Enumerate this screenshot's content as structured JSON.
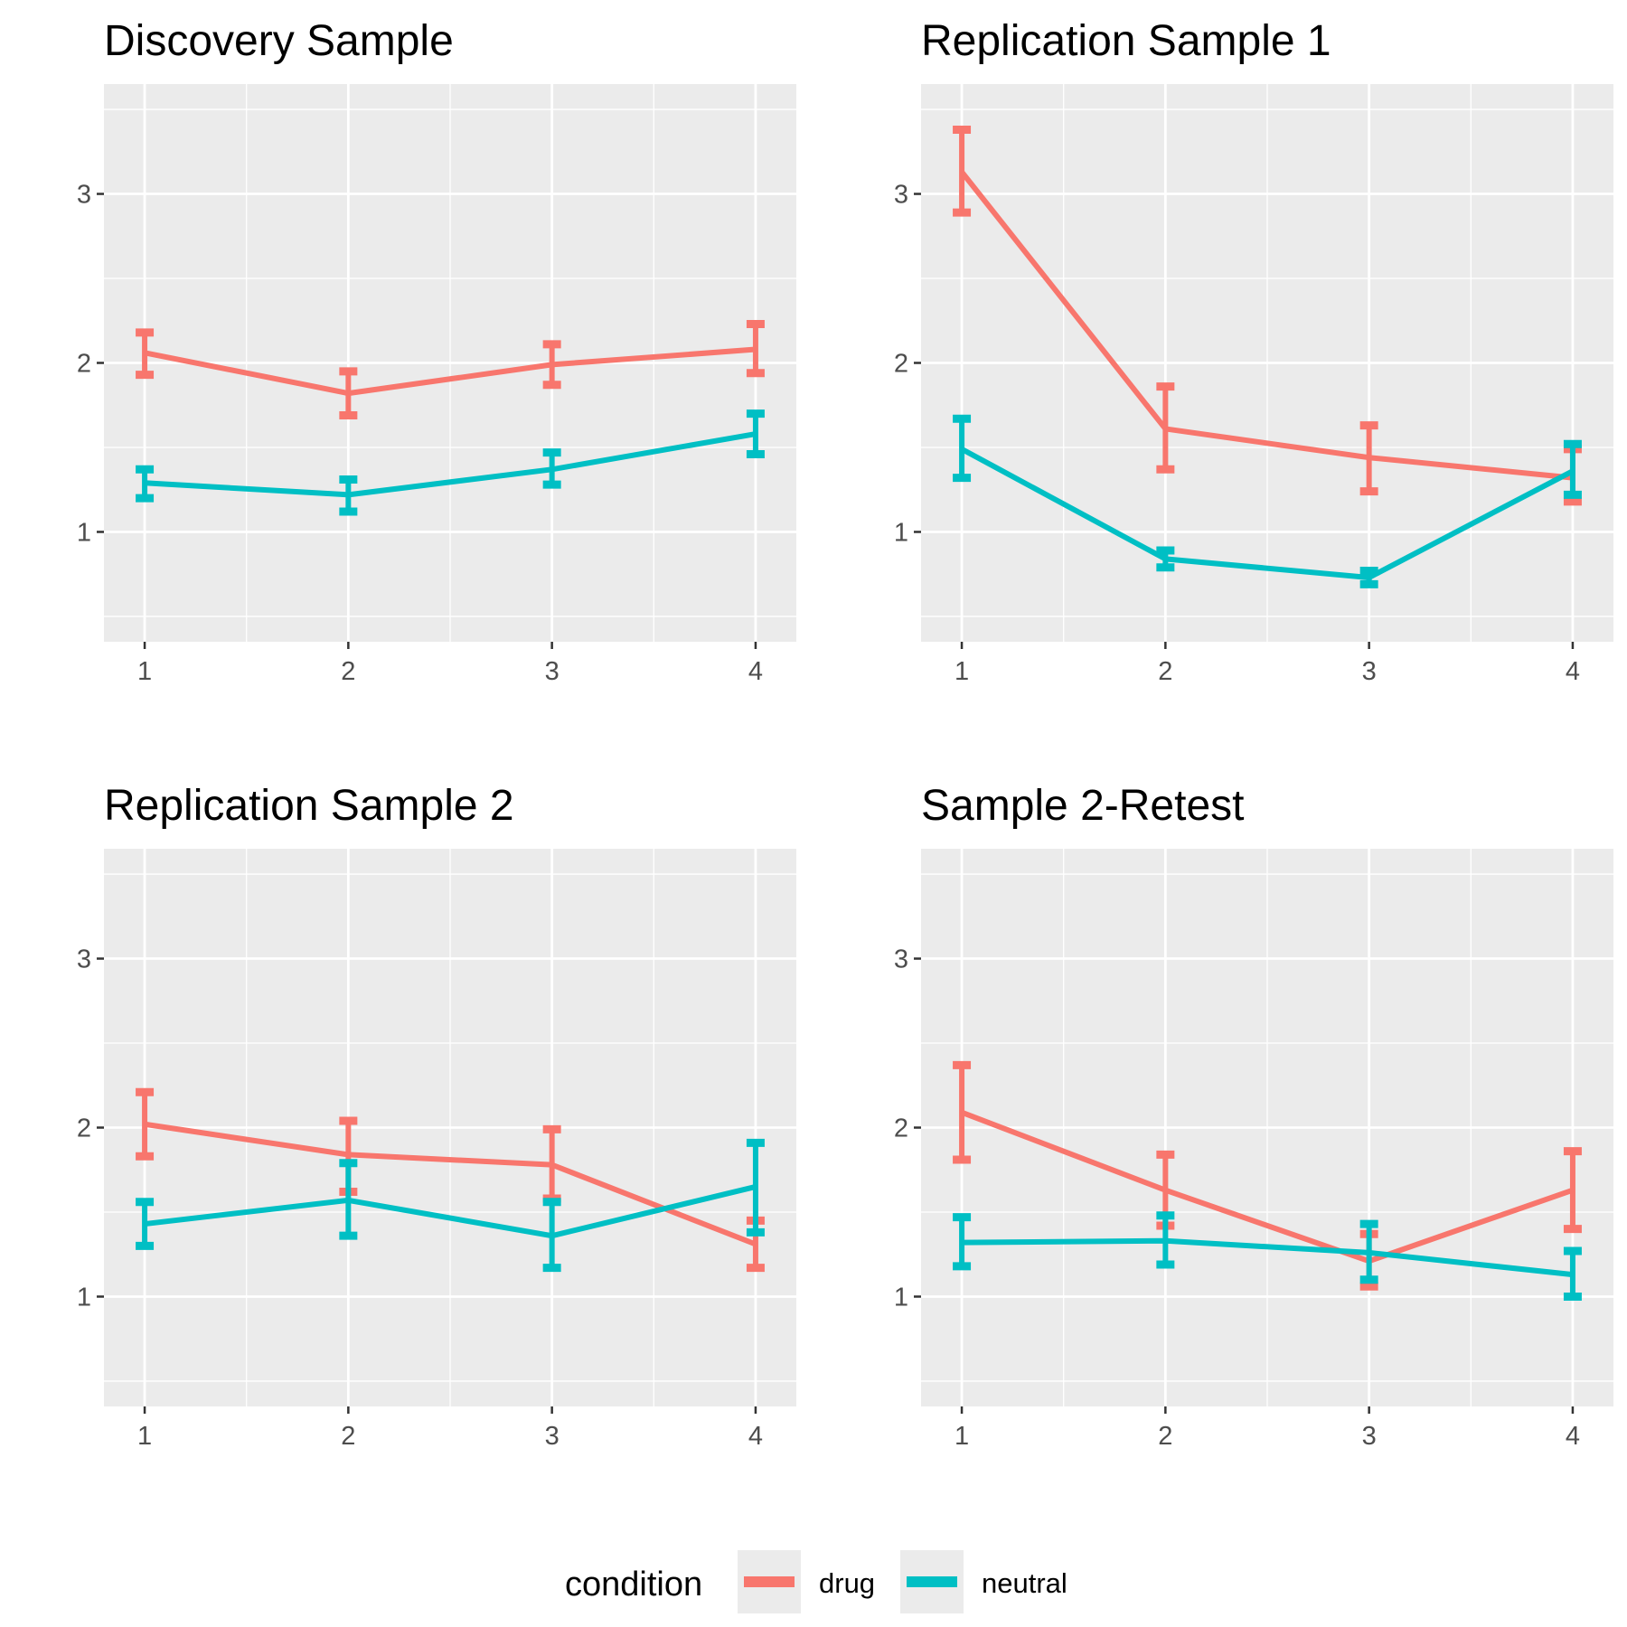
{
  "legend": {
    "title": "condition",
    "position": "bottom",
    "items": [
      {
        "label": "drug",
        "color": "#F8766D"
      },
      {
        "label": "neutral",
        "color": "#00BFC4"
      }
    ]
  },
  "chart_data": [
    {
      "type": "line",
      "title": "Discovery Sample",
      "xlabel": "",
      "ylabel": "",
      "x": [
        1,
        2,
        3,
        4
      ],
      "xlim": [
        0.8,
        4.2
      ],
      "ylim": [
        0.35,
        3.65
      ],
      "yticks": [
        1,
        2,
        3
      ],
      "grid": true,
      "series": [
        {
          "name": "drug",
          "color": "#F8766D",
          "y": [
            2.06,
            1.82,
            1.99,
            2.08
          ],
          "lower": [
            1.93,
            1.69,
            1.87,
            1.94
          ],
          "upper": [
            2.18,
            1.95,
            2.11,
            2.23
          ]
        },
        {
          "name": "neutral",
          "color": "#00BFC4",
          "y": [
            1.29,
            1.22,
            1.37,
            1.58
          ],
          "lower": [
            1.2,
            1.12,
            1.28,
            1.46
          ],
          "upper": [
            1.37,
            1.31,
            1.47,
            1.7
          ]
        }
      ]
    },
    {
      "type": "line",
      "title": "Replication Sample 1",
      "xlabel": "",
      "ylabel": "",
      "x": [
        1,
        2,
        3,
        4
      ],
      "xlim": [
        0.8,
        4.2
      ],
      "ylim": [
        0.35,
        3.65
      ],
      "yticks": [
        1,
        2,
        3
      ],
      "grid": true,
      "series": [
        {
          "name": "drug",
          "color": "#F8766D",
          "y": [
            3.13,
            1.61,
            1.44,
            1.32
          ],
          "lower": [
            2.89,
            1.37,
            1.24,
            1.18
          ],
          "upper": [
            3.38,
            1.86,
            1.63,
            1.49
          ]
        },
        {
          "name": "neutral",
          "color": "#00BFC4",
          "y": [
            1.49,
            0.84,
            0.73,
            1.36
          ],
          "lower": [
            1.32,
            0.79,
            0.69,
            1.22
          ],
          "upper": [
            1.67,
            0.89,
            0.77,
            1.52
          ]
        }
      ]
    },
    {
      "type": "line",
      "title": "Replication Sample 2",
      "xlabel": "",
      "ylabel": "",
      "x": [
        1,
        2,
        3,
        4
      ],
      "xlim": [
        0.8,
        4.2
      ],
      "ylim": [
        0.35,
        3.65
      ],
      "yticks": [
        1,
        2,
        3
      ],
      "grid": true,
      "series": [
        {
          "name": "drug",
          "color": "#F8766D",
          "y": [
            2.02,
            1.84,
            1.78,
            1.31
          ],
          "lower": [
            1.83,
            1.62,
            1.58,
            1.17
          ],
          "upper": [
            2.21,
            2.04,
            1.99,
            1.45
          ]
        },
        {
          "name": "neutral",
          "color": "#00BFC4",
          "y": [
            1.43,
            1.57,
            1.36,
            1.65
          ],
          "lower": [
            1.3,
            1.36,
            1.17,
            1.38
          ],
          "upper": [
            1.56,
            1.79,
            1.56,
            1.91
          ]
        }
      ]
    },
    {
      "type": "line",
      "title": "Sample 2-Retest",
      "xlabel": "",
      "ylabel": "",
      "x": [
        1,
        2,
        3,
        4
      ],
      "xlim": [
        0.8,
        4.2
      ],
      "ylim": [
        0.35,
        3.65
      ],
      "yticks": [
        1,
        2,
        3
      ],
      "grid": true,
      "series": [
        {
          "name": "drug",
          "color": "#F8766D",
          "y": [
            2.09,
            1.63,
            1.21,
            1.63
          ],
          "lower": [
            1.81,
            1.42,
            1.06,
            1.4
          ],
          "upper": [
            2.37,
            1.84,
            1.37,
            1.86
          ]
        },
        {
          "name": "neutral",
          "color": "#00BFC4",
          "y": [
            1.32,
            1.33,
            1.26,
            1.13
          ],
          "lower": [
            1.18,
            1.19,
            1.1,
            1.0
          ],
          "upper": [
            1.47,
            1.48,
            1.43,
            1.27
          ]
        }
      ]
    }
  ]
}
